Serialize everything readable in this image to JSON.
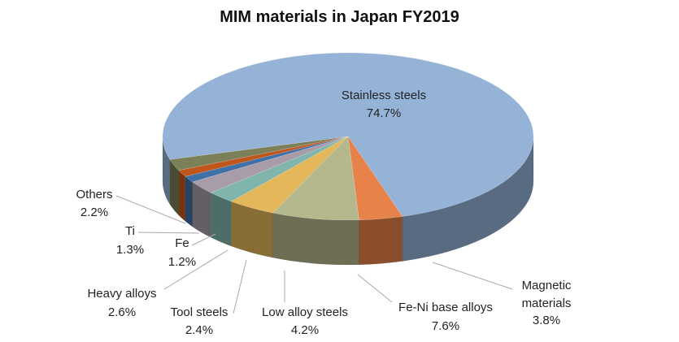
{
  "chart_data": {
    "type": "pie",
    "title": "MIM materials in Japan FY2019",
    "categories": [
      "Stainless steels",
      "Magnetic materials",
      "Fe-Ni base alloys",
      "Low alloy steels",
      "Tool steels",
      "Heavy alloys",
      "Fe",
      "Ti",
      "Others"
    ],
    "values": [
      74.7,
      3.8,
      7.6,
      4.2,
      2.4,
      2.6,
      1.2,
      1.3,
      2.2
    ],
    "value_labels": [
      "74.7%",
      "3.8%",
      "7.6%",
      "4.2%",
      "2.4%",
      "2.6%",
      "1.2%",
      "1.3%",
      "2.2%"
    ],
    "colors": [
      "#95b3d7",
      "#e6824a",
      "#b5b78c",
      "#e3b75a",
      "#7fb5ad",
      "#a89ca9",
      "#3f70a7",
      "#c0561c",
      "#7c8058"
    ]
  }
}
